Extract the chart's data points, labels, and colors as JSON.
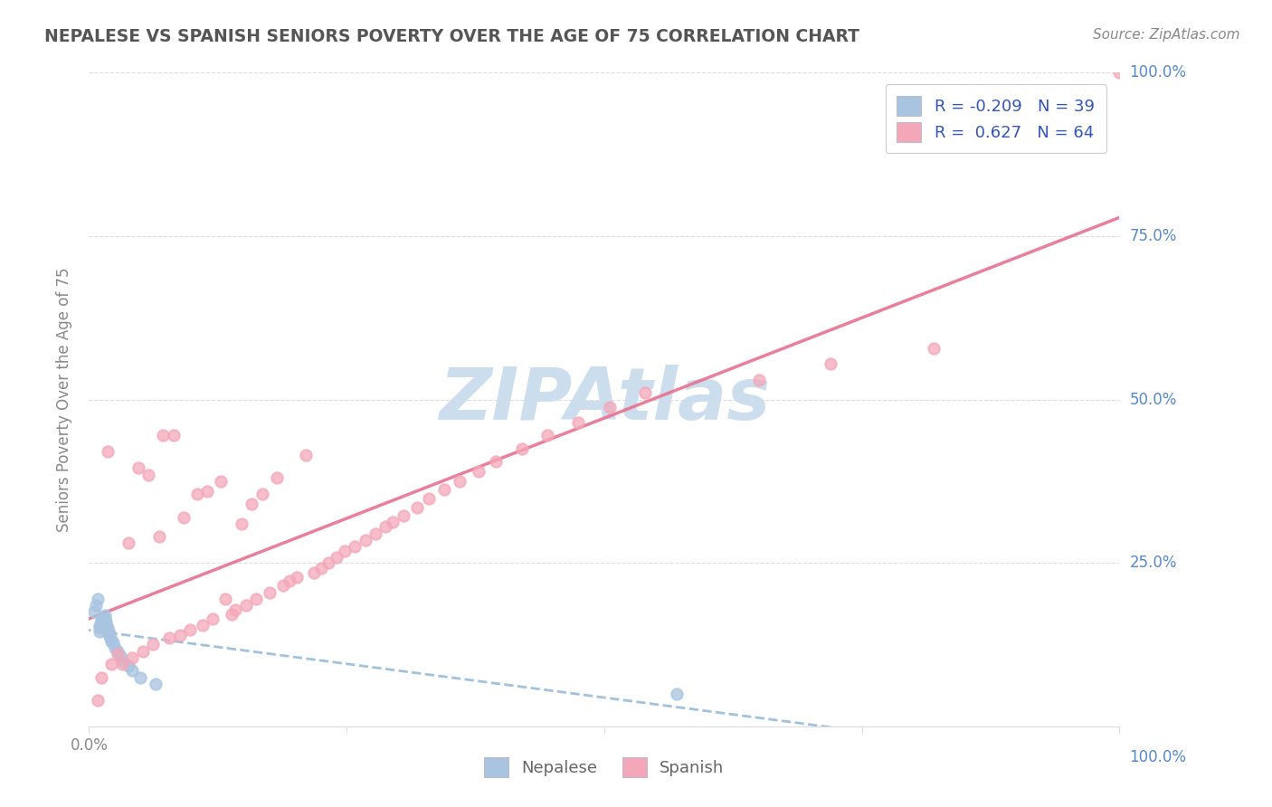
{
  "title": "NEPALESE VS SPANISH SENIORS POVERTY OVER THE AGE OF 75 CORRELATION CHART",
  "source_text": "Source: ZipAtlas.com",
  "ylabel": "Seniors Poverty Over the Age of 75",
  "watermark": "ZIPAtlas",
  "xlim": [
    0,
    1.0
  ],
  "ylim": [
    0,
    1.0
  ],
  "xticks": [
    0.0,
    0.25,
    0.5,
    0.75,
    1.0
  ],
  "xticklabels": [
    "0.0%",
    "",
    "",
    "",
    ""
  ],
  "yticks": [
    0.0,
    0.25,
    0.5,
    0.75,
    1.0
  ],
  "yticklabels": [
    "",
    "",
    "",
    "",
    ""
  ],
  "nepalese_R": -0.209,
  "nepalese_N": 39,
  "spanish_R": 0.627,
  "spanish_N": 64,
  "nepalese_color": "#a8c4e0",
  "spanish_color": "#f4a7b9",
  "nepalese_line_color": "#90b8d8",
  "spanish_line_color": "#e87090",
  "legend_color_nepalese": "#a8c4e0",
  "legend_color_spanish": "#f4a7b9",
  "title_color": "#555555",
  "axis_color": "#888888",
  "grid_color": "#dddddd",
  "right_label_color": "#5588cc",
  "watermark_color": "#ccdded",
  "nepalese_x": [
    0.005,
    0.007,
    0.008,
    0.01,
    0.01,
    0.01,
    0.012,
    0.012,
    0.013,
    0.013,
    0.013,
    0.014,
    0.014,
    0.015,
    0.015,
    0.015,
    0.015,
    0.016,
    0.016,
    0.016,
    0.017,
    0.017,
    0.018,
    0.018,
    0.019,
    0.02,
    0.02,
    0.021,
    0.022,
    0.023,
    0.025,
    0.028,
    0.03,
    0.033,
    0.038,
    0.042,
    0.05,
    0.065,
    0.57
  ],
  "nepalese_y": [
    0.175,
    0.185,
    0.195,
    0.145,
    0.15,
    0.155,
    0.16,
    0.165,
    0.155,
    0.16,
    0.165,
    0.158,
    0.162,
    0.155,
    0.16,
    0.165,
    0.17,
    0.15,
    0.155,
    0.16,
    0.148,
    0.152,
    0.145,
    0.15,
    0.142,
    0.138,
    0.142,
    0.135,
    0.13,
    0.128,
    0.12,
    0.115,
    0.108,
    0.1,
    0.092,
    0.085,
    0.075,
    0.065,
    0.05
  ],
  "spanish_x": [
    0.008,
    0.012,
    0.018,
    0.022,
    0.028,
    0.032,
    0.038,
    0.042,
    0.048,
    0.052,
    0.058,
    0.062,
    0.068,
    0.072,
    0.078,
    0.082,
    0.088,
    0.092,
    0.098,
    0.105,
    0.11,
    0.115,
    0.12,
    0.128,
    0.132,
    0.138,
    0.142,
    0.148,
    0.152,
    0.158,
    0.162,
    0.168,
    0.175,
    0.182,
    0.188,
    0.195,
    0.202,
    0.21,
    0.218,
    0.225,
    0.232,
    0.24,
    0.248,
    0.258,
    0.268,
    0.278,
    0.288,
    0.295,
    0.305,
    0.318,
    0.33,
    0.345,
    0.36,
    0.378,
    0.395,
    0.42,
    0.445,
    0.475,
    0.505,
    0.54,
    0.65,
    0.72,
    0.82,
    1.0
  ],
  "spanish_y": [
    0.04,
    0.075,
    0.42,
    0.095,
    0.11,
    0.095,
    0.28,
    0.105,
    0.395,
    0.115,
    0.385,
    0.125,
    0.29,
    0.445,
    0.135,
    0.445,
    0.14,
    0.32,
    0.148,
    0.355,
    0.155,
    0.36,
    0.165,
    0.375,
    0.195,
    0.172,
    0.178,
    0.31,
    0.185,
    0.34,
    0.195,
    0.355,
    0.205,
    0.38,
    0.215,
    0.222,
    0.228,
    0.415,
    0.235,
    0.242,
    0.25,
    0.258,
    0.268,
    0.275,
    0.285,
    0.295,
    0.305,
    0.312,
    0.322,
    0.335,
    0.348,
    0.362,
    0.375,
    0.39,
    0.405,
    0.425,
    0.445,
    0.465,
    0.488,
    0.51,
    0.53,
    0.555,
    0.578,
    1.0
  ]
}
